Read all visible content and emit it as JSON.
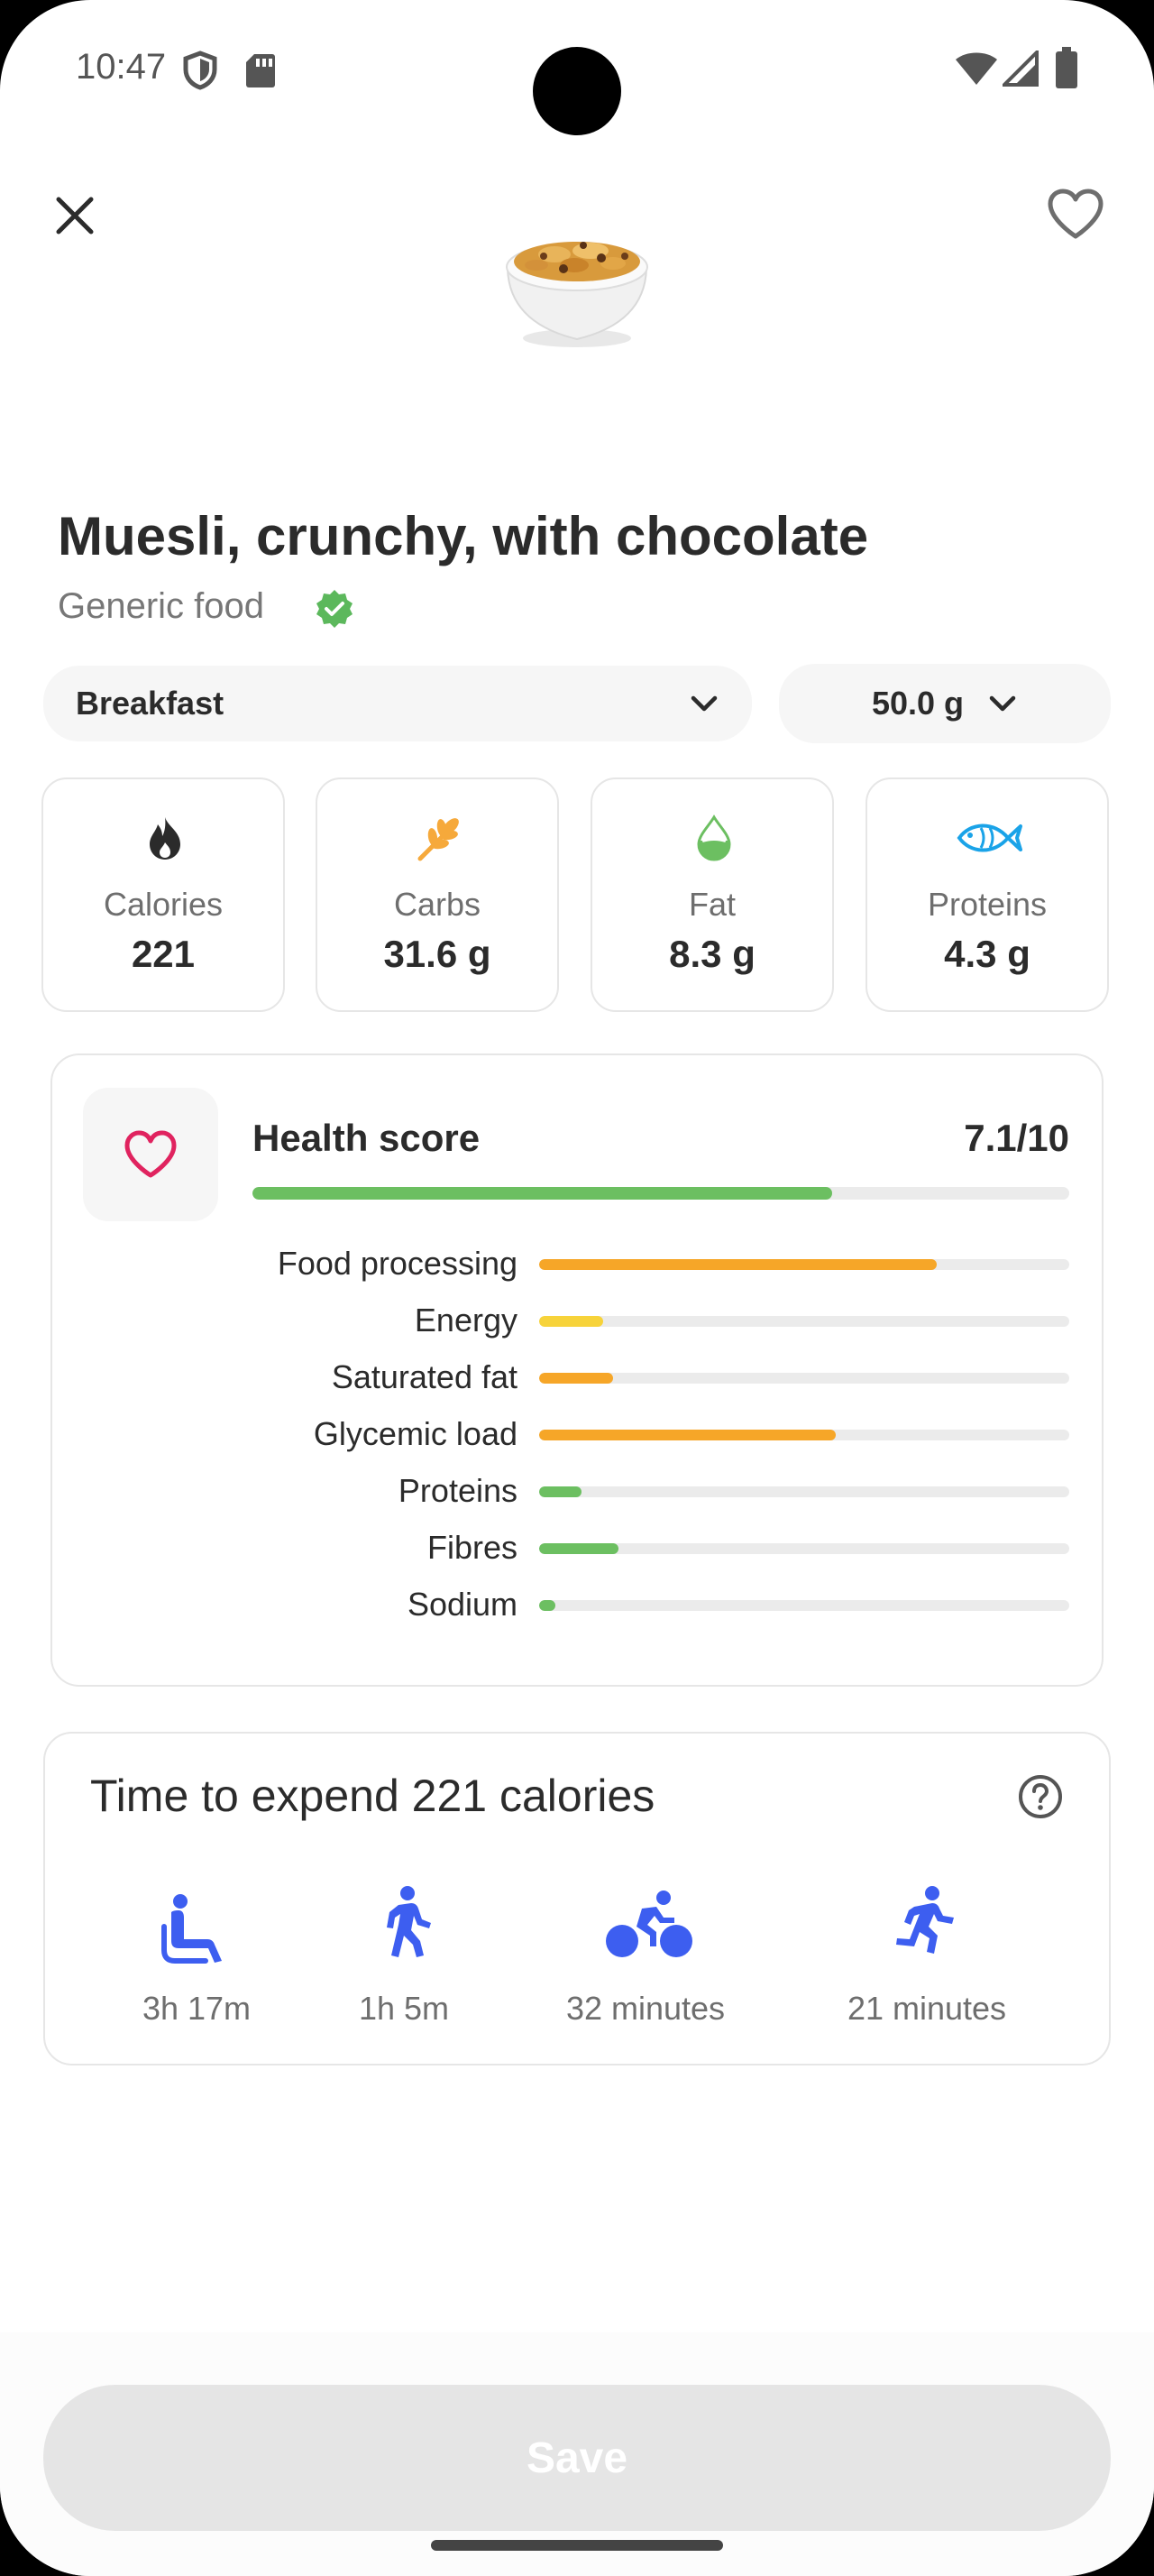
{
  "status_bar": {
    "time": "10:47",
    "icons": [
      "shield-icon",
      "sd-card-icon",
      "wifi-icon",
      "signal-icon",
      "battery-icon"
    ]
  },
  "header": {
    "close_icon": "close-icon",
    "favorite_icon": "heart-outline-icon",
    "food_image": "cereal-bowl"
  },
  "food": {
    "name": "Muesli, crunchy, with chocolate",
    "source": "Generic food",
    "verified_icon": "verified-badge-icon"
  },
  "selectors": {
    "meal": "Breakfast",
    "amount": "50.0 g"
  },
  "nutrients": [
    {
      "label": "Calories",
      "value": "221",
      "icon": "flame-icon",
      "color": "#2b2b2b"
    },
    {
      "label": "Carbs",
      "value": "31.6 g",
      "icon": "wheat-icon",
      "color": "#f6a93b"
    },
    {
      "label": "Fat",
      "value": "8.3 g",
      "icon": "droplet-icon",
      "color": "#6cbf61"
    },
    {
      "label": "Proteins",
      "value": "4.3 g",
      "icon": "fish-icon",
      "color": "#1aa3e8"
    }
  ],
  "health": {
    "title": "Health score",
    "score": "7.1/10",
    "score_fraction": 0.71,
    "bar_color": "#6cbf61",
    "icon": "heart-outline-icon",
    "icon_color": "#e0235f",
    "metrics": [
      {
        "label": "Food processing",
        "fraction": 0.75,
        "color": "#f6a628"
      },
      {
        "label": "Energy",
        "fraction": 0.12,
        "color": "#f7d33a"
      },
      {
        "label": "Saturated fat",
        "fraction": 0.14,
        "color": "#f6a628"
      },
      {
        "label": "Glycemic load",
        "fraction": 0.56,
        "color": "#f6a628"
      },
      {
        "label": "Proteins",
        "fraction": 0.08,
        "color": "#6cbf61"
      },
      {
        "label": "Fibres",
        "fraction": 0.15,
        "color": "#6cbf61"
      },
      {
        "label": "Sodium",
        "fraction": 0.03,
        "color": "#6cbf61"
      }
    ]
  },
  "expend": {
    "title": "Time to expend 221 calories",
    "help_icon": "help-circle-icon",
    "icon_color": "#3d5ef0",
    "activities": [
      {
        "icon": "sitting-icon",
        "label": "3h 17m"
      },
      {
        "icon": "walking-icon",
        "label": "1h 5m"
      },
      {
        "icon": "cycling-icon",
        "label": "32 minutes"
      },
      {
        "icon": "running-icon",
        "label": "21 minutes"
      }
    ]
  },
  "footer": {
    "save_label": "Save"
  }
}
